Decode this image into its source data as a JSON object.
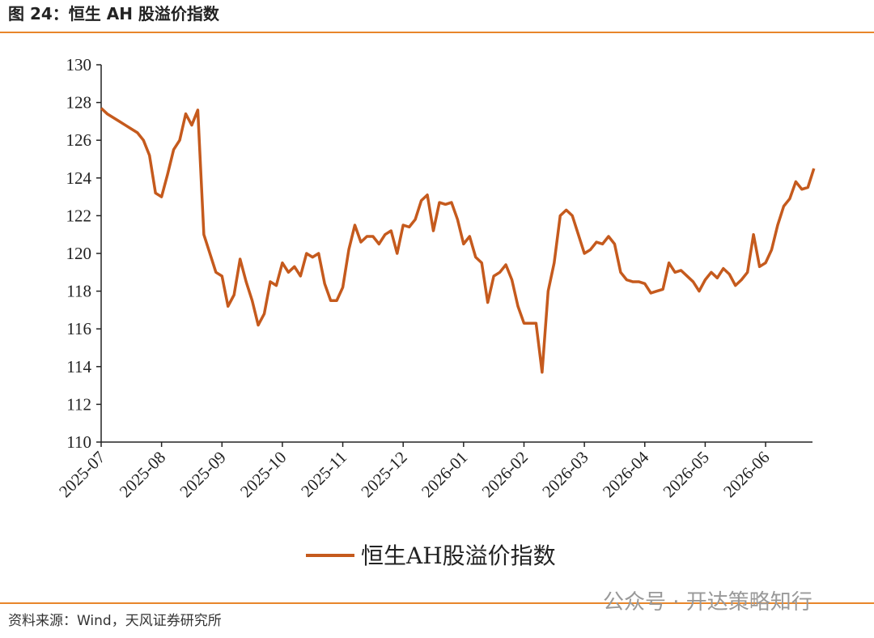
{
  "header": {
    "title": "图 24：恒生 AH 股溢价指数"
  },
  "chart_data": {
    "type": "line",
    "categories": [
      "2025-07",
      null,
      null,
      null,
      null,
      null,
      null,
      null,
      null,
      null,
      "2025-08",
      null,
      null,
      null,
      null,
      null,
      null,
      null,
      null,
      null,
      "2025-09",
      null,
      null,
      null,
      null,
      null,
      null,
      null,
      null,
      null,
      "2025-10",
      null,
      null,
      null,
      null,
      null,
      null,
      null,
      null,
      null,
      "2025-11",
      null,
      null,
      null,
      null,
      null,
      null,
      null,
      null,
      null,
      "2025-12",
      null,
      null,
      null,
      null,
      null,
      null,
      null,
      null,
      null,
      "2026-01",
      null,
      null,
      null,
      null,
      null,
      null,
      null,
      null,
      null,
      "2026-02",
      null,
      null,
      null,
      null,
      null,
      null,
      null,
      null,
      null,
      "2026-03",
      null,
      null,
      null,
      null,
      null,
      null,
      null,
      null,
      null,
      "2026-04",
      null,
      null,
      null,
      null,
      null,
      null,
      null,
      null,
      null,
      "2026-05",
      null,
      null,
      null,
      null,
      null,
      null,
      null,
      null,
      null,
      "2026-06",
      null,
      null,
      null,
      null,
      null,
      null,
      null,
      null
    ],
    "series": [
      {
        "name": "恒生AH股溢价指数",
        "color": "#c55a1d",
        "values": [
          127.7,
          127.4,
          127.2,
          127.0,
          126.8,
          126.6,
          126.4,
          126.0,
          125.2,
          123.2,
          123.0,
          124.2,
          125.5,
          126.0,
          127.4,
          126.8,
          127.6,
          121.0,
          120.0,
          119.0,
          118.8,
          117.2,
          117.8,
          119.7,
          118.5,
          117.5,
          116.2,
          116.8,
          118.5,
          118.3,
          119.5,
          119.0,
          119.3,
          118.8,
          120.0,
          119.8,
          120.0,
          118.4,
          117.5,
          117.5,
          118.2,
          120.2,
          121.5,
          120.6,
          120.9,
          120.9,
          120.5,
          121.0,
          121.2,
          120.0,
          121.5,
          121.4,
          121.8,
          122.8,
          123.1,
          121.2,
          122.7,
          122.6,
          122.7,
          121.8,
          120.5,
          120.9,
          119.8,
          119.5,
          117.4,
          118.8,
          119.0,
          119.4,
          118.6,
          117.2,
          116.3,
          116.3,
          116.3,
          113.7,
          118.0,
          119.5,
          122.0,
          122.3,
          122.0,
          121.0,
          120.0,
          120.2,
          120.6,
          120.5,
          120.9,
          120.5,
          119.0,
          118.6,
          118.5,
          118.5,
          118.4,
          117.9,
          118.0,
          118.1,
          119.5,
          119.0,
          119.1,
          118.8,
          118.5,
          118.0,
          118.6,
          119.0,
          118.7,
          119.2,
          118.9,
          118.3,
          118.6,
          119.0,
          121.0,
          119.3,
          119.5,
          120.2,
          121.5,
          122.5,
          122.9,
          123.8,
          123.4,
          123.5,
          124.5
        ]
      }
    ],
    "ylim": [
      110,
      130
    ],
    "yticks": [
      110,
      112,
      114,
      116,
      118,
      120,
      122,
      124,
      126,
      128,
      130
    ],
    "legend": "bottom"
  },
  "footer": {
    "source": "资料来源：Wind，天风证券研究所",
    "watermark": "公众号 · 开达策略知行"
  }
}
